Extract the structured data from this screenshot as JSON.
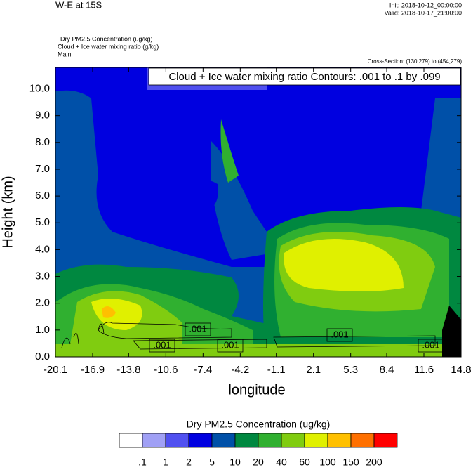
{
  "chart_data": {
    "type": "contour",
    "title": "W-E at 15S",
    "init": "Init: 2018-10-12_00:00:00",
    "valid": "Valid: 2018-10-17_21:00:00",
    "field_labels": [
      "Dry PM2.5 Concentration   (ug/kg)",
      "Cloud + Ice water mixing ratio   (g/kg)",
      "Main"
    ],
    "cross_section": "Cross-Section: (130,279) to (454,279)",
    "contour_info": "Cloud + Ice water mixing ratio Contours: .001 to .1 by .099",
    "contour_labels": [
      ".001",
      ".001",
      ".001",
      ".001",
      ".001"
    ],
    "xlabel": "longitude",
    "ylabel": "Height (km)",
    "xlim": [
      -20.1,
      14.8
    ],
    "xticks": [
      -20.1,
      -16.9,
      -13.8,
      -10.6,
      -7.4,
      -4.2,
      -1.1,
      2.1,
      5.3,
      8.4,
      11.6,
      14.8
    ],
    "ylim": [
      0,
      10.8
    ],
    "yticks": [
      {
        "value": 0,
        "label": "0.0"
      },
      {
        "value": 1,
        "label": "1.0"
      },
      {
        "value": 2,
        "label": "2.0"
      },
      {
        "value": 3,
        "label": "3.0"
      },
      {
        "value": 4,
        "label": "4.0"
      },
      {
        "value": 5,
        "label": "5.0"
      },
      {
        "value": 6,
        "label": "6.0"
      },
      {
        "value": 7,
        "label": "7.0"
      },
      {
        "value": 8,
        "label": "8.0"
      },
      {
        "value": 9,
        "label": "9.0"
      },
      {
        "value": 10,
        "label": "10.0"
      }
    ],
    "colorbar_title": "Dry PM2.5 Concentration  (ug/kg)",
    "colorbar_levels": [
      {
        "value": 0.1,
        "label": ".1"
      },
      1,
      2,
      5,
      10,
      20,
      40,
      60,
      100,
      150,
      200
    ],
    "colorbar_colors": [
      "#ffffff",
      "#a0a0f5",
      "#5050f0",
      "#0000e0",
      "#0050a8",
      "#008840",
      "#30b030",
      "#80cc10",
      "#e0f000",
      "#ffc000",
      "#ff7000",
      "#ff0000"
    ]
  }
}
